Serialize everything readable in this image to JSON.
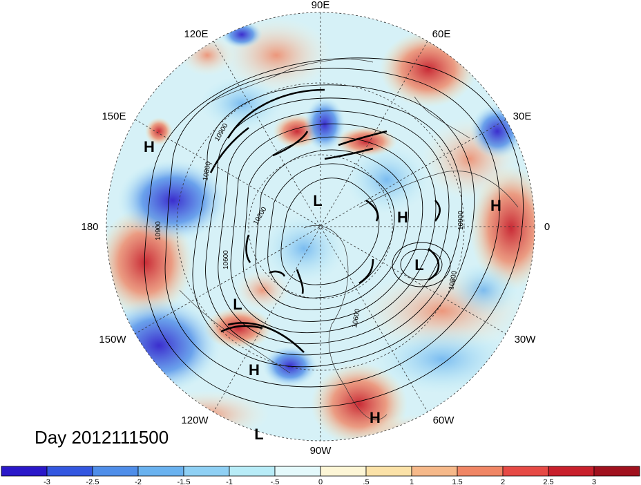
{
  "title": "Day 2012111500",
  "longitude_labels": [
    "90E",
    "60E",
    "120E",
    "150E",
    "30E",
    "180",
    "0",
    "150W",
    "30W",
    "120W",
    "60W",
    "90W"
  ],
  "pressure_centers": {
    "high": "H",
    "low": "L"
  },
  "contour_labels": [
    "10900",
    "10800",
    "10600",
    "10200",
    "10900",
    "10900",
    "10800",
    "10600"
  ],
  "colorbar": {
    "ticks": [
      "-3",
      "-2.5",
      "-2",
      "-1.5",
      "-1",
      "-.5",
      "0",
      ".5",
      "1",
      "1.5",
      "2",
      "2.5",
      "3"
    ],
    "colors": [
      "#2a18c9",
      "#3357e0",
      "#4f8ee9",
      "#6ab2ef",
      "#8fd0f4",
      "#b8ecf7",
      "#e4f9fb",
      "#fdf6d6",
      "#fbe2a8",
      "#f6b98a",
      "#f08665",
      "#e64a45",
      "#c8202c",
      "#a0111e"
    ]
  }
}
